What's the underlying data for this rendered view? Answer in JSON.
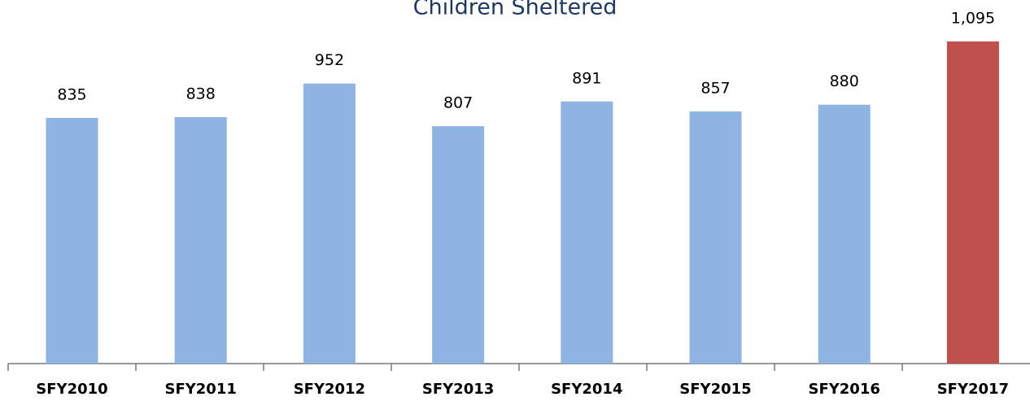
{
  "chart_data": {
    "type": "bar",
    "title": "Children Sheltered",
    "categories": [
      "SFY2010",
      "SFY2011",
      "SFY2012",
      "SFY2013",
      "SFY2014",
      "SFY2015",
      "SFY2016",
      "SFY2017"
    ],
    "values": [
      835,
      838,
      952,
      807,
      891,
      857,
      880,
      1095
    ],
    "value_labels": [
      "835",
      "838",
      "952",
      "807",
      "891",
      "857",
      "880",
      "1,095"
    ],
    "colors": [
      "#8eb4e3",
      "#8eb4e3",
      "#8eb4e3",
      "#8eb4e3",
      "#8eb4e3",
      "#8eb4e3",
      "#8eb4e3",
      "#c0504d"
    ],
    "ylim": [
      0,
      1200
    ]
  }
}
